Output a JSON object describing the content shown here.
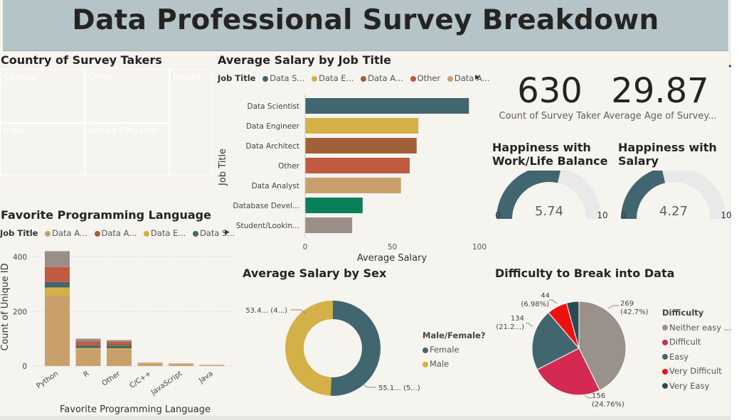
{
  "dashboard": {
    "title": "Data Professional Survey Breakdown"
  },
  "treemap": {
    "title": "Country of Survey Takers",
    "cells": [
      {
        "label": "Canada",
        "color": "#41666f"
      },
      {
        "label": "Other",
        "color": "#a0613a"
      },
      {
        "label": "United ...",
        "color": "#c9a06c"
      },
      {
        "label": "India",
        "color": "#d4b048"
      },
      {
        "label": "United Kingdom",
        "color": "#c05a40"
      }
    ]
  },
  "salary_by_job": {
    "title": "Average Salary by Job Title",
    "legend_title": "Job Title",
    "legend": [
      {
        "label": "Data S...",
        "color": "#41666f"
      },
      {
        "label": "Data E...",
        "color": "#d4b048"
      },
      {
        "label": "Data A...",
        "color": "#a0613a"
      },
      {
        "label": "Other",
        "color": "#c05a40"
      },
      {
        "label": "Data A...",
        "color": "#c9a06c"
      }
    ]
  },
  "kpis": [
    {
      "value": "630",
      "label": "Count of Survey Taker"
    },
    {
      "value": "29.87",
      "label": "Average Age of Survey..."
    }
  ],
  "gauges": [
    {
      "title_line1": "Happiness with",
      "title_line2": "Work/Life Balance",
      "value": 5.74,
      "value_text": "5.74",
      "min": 0,
      "max": 10,
      "min_text": "0",
      "max_text": "10"
    },
    {
      "title_line1": "Happiness with",
      "title_line2": "Salary",
      "value": 4.27,
      "value_text": "4.27",
      "min": 0,
      "max": 10,
      "min_text": "0",
      "max_text": "10"
    }
  ],
  "prog_lang": {
    "title": "Favorite Programming Language",
    "legend_title": "Job Title",
    "legend": [
      {
        "label": "Data A...",
        "color": "#c9a06c"
      },
      {
        "label": "Data A...",
        "color": "#a0613a"
      },
      {
        "label": "Data E...",
        "color": "#d4b048"
      },
      {
        "label": "Data S...",
        "color": "#41666f"
      }
    ]
  },
  "salary_by_sex": {
    "title": "Average Salary by Sex",
    "legend_title": "Male/Female?",
    "legend": [
      {
        "label": "Female",
        "color": "#41666f"
      },
      {
        "label": "Male",
        "color": "#d4b048"
      }
    ]
  },
  "difficulty": {
    "title": "Difficulty to Break into Data",
    "legend_title": "Difficulty",
    "legend": [
      {
        "label": "Neither easy ...",
        "color": "#9a918a"
      },
      {
        "label": "Difficult",
        "color": "#d42a52"
      },
      {
        "label": "Easy",
        "color": "#41666f"
      },
      {
        "label": "Very Difficult",
        "color": "#ee1111"
      },
      {
        "label": "Very Easy",
        "color": "#2b4b55"
      }
    ]
  },
  "chart_data": [
    {
      "type": "bar",
      "orientation": "horizontal",
      "title": "Average Salary by Job Title",
      "xlabel": "Average Salary",
      "ylabel": "Job Title",
      "categories": [
        "Data Scientist",
        "Data Engineer",
        "Data Architect",
        "Other",
        "Data Analyst",
        "Database Devel...",
        "Student/Lookin..."
      ],
      "values": [
        94,
        65,
        64,
        60,
        55,
        33,
        27
      ],
      "colors": [
        "#41666f",
        "#d4b048",
        "#a0613a",
        "#c05a40",
        "#c9a06c",
        "#0b7e5a",
        "#9a8e86"
      ],
      "xticks": [
        "0",
        "50",
        "100"
      ],
      "xlim": [
        0,
        100
      ]
    },
    {
      "type": "bar",
      "stacked": true,
      "title": "Favorite Programming Language",
      "xlabel": "Favorite Programming Language",
      "ylabel": "Count of Unique ID",
      "categories": [
        "Python",
        "R",
        "Other",
        "C/C++",
        "JavaScript",
        "Java"
      ],
      "series": [
        {
          "name": "Data A...",
          "color": "#c9a06c",
          "values": [
            258,
            62,
            60,
            10,
            7,
            3
          ]
        },
        {
          "name": "Data E...",
          "color": "#d4b048",
          "values": [
            30,
            4,
            5,
            1,
            1,
            0
          ]
        },
        {
          "name": "Data S...",
          "color": "#41666f",
          "values": [
            20,
            8,
            10,
            0,
            0,
            0
          ]
        },
        {
          "name": "Data A...",
          "color": "#a0613a",
          "values": [
            0,
            6,
            6,
            0,
            0,
            0
          ]
        },
        {
          "name": "Other",
          "color": "#c05a40",
          "values": [
            55,
            10,
            8,
            1,
            1,
            0
          ]
        },
        {
          "name": "Data A...",
          "color": "#9a8e86",
          "values": [
            58,
            10,
            6,
            0,
            0,
            1
          ]
        }
      ],
      "yticks": [
        "0",
        "200",
        "400"
      ],
      "ylim": [
        0,
        430
      ]
    },
    {
      "type": "pie",
      "donut": true,
      "title": "Average Salary by Sex",
      "slices": [
        {
          "label": "Female",
          "value": 55.1,
          "data_label": "55.1... (5...)",
          "color": "#41666f"
        },
        {
          "label": "Male",
          "value": 53.4,
          "data_label": "53.4... (4...)",
          "color": "#d4b048"
        }
      ]
    },
    {
      "type": "pie",
      "title": "Difficulty to Break into Data",
      "slices": [
        {
          "label": "Neither easy ...",
          "value": 269,
          "data_label_1": "269",
          "data_label_2": "(42.7%)",
          "color": "#9a918a"
        },
        {
          "label": "Difficult",
          "value": 156,
          "data_label_1": "156",
          "data_label_2": "(24.76%)",
          "color": "#d42a52"
        },
        {
          "label": "Easy",
          "value": 134,
          "data_label_1": "134",
          "data_label_2": "(21.2...)",
          "color": "#41666f"
        },
        {
          "label": "Very Difficult",
          "value": 44,
          "data_label_1": "44",
          "data_label_2": "(6.98%)",
          "color": "#ee1111"
        },
        {
          "label": "Very Easy",
          "value": 27,
          "data_label_1": "",
          "data_label_2": "",
          "color": "#2b4b55"
        }
      ]
    }
  ]
}
